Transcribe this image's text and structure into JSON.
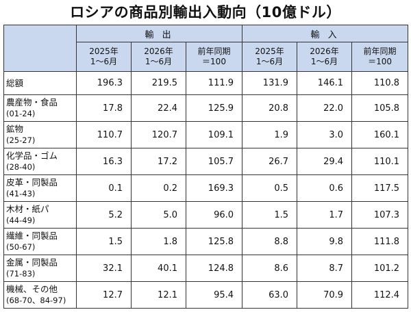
{
  "title": "ロシアの商品別輸出入動向（10億ドル）",
  "groups": {
    "export": "輸 出",
    "import": "輸 入"
  },
  "subheaders": [
    {
      "l1": "2025年",
      "l2": "1～6月"
    },
    {
      "l1": "2026年",
      "l2": "1～6月"
    },
    {
      "l1": "前年同期",
      "l2": "＝100"
    },
    {
      "l1": "2025年",
      "l2": "1～6月"
    },
    {
      "l1": "2026年",
      "l2": "1～6月"
    },
    {
      "l1": "前年同期",
      "l2": "＝100"
    }
  ],
  "rows": [
    {
      "name": "総額",
      "code": "",
      "values": [
        "196.3",
        "219.5",
        "111.9",
        "131.9",
        "146.1",
        "110.8"
      ]
    },
    {
      "name": "農産物・食品",
      "code": "(01-24)",
      "values": [
        "17.8",
        "22.4",
        "125.9",
        "20.8",
        "22.0",
        "105.8"
      ]
    },
    {
      "name": "鉱物",
      "code": "(25-27)",
      "values": [
        "110.7",
        "120.7",
        "109.1",
        "1.9",
        "3.0",
        "160.1"
      ]
    },
    {
      "name": "化学品・ゴム",
      "code": "(28-40)",
      "values": [
        "16.3",
        "17.2",
        "105.7",
        "26.7",
        "29.4",
        "110.1"
      ]
    },
    {
      "name": "皮革・同製品",
      "code": "(41-43)",
      "values": [
        "0.1",
        "0.2",
        "169.3",
        "0.5",
        "0.6",
        "117.5"
      ]
    },
    {
      "name": "木材・紙パ",
      "code": "(44-49)",
      "values": [
        "5.2",
        "5.0",
        "96.0",
        "1.5",
        "1.7",
        "107.3"
      ]
    },
    {
      "name": "繊維・同製品",
      "code": "(50-67)",
      "values": [
        "1.5",
        "1.8",
        "125.8",
        "8.8",
        "9.8",
        "111.8"
      ]
    },
    {
      "name": "金属・同製品",
      "code": "(71-83)",
      "values": [
        "32.1",
        "40.1",
        "124.8",
        "8.6",
        "8.7",
        "101.2"
      ]
    },
    {
      "name": "機械、その他",
      "code": "(68-70、84-97)",
      "values": [
        "12.7",
        "12.1",
        "95.4",
        "63.0",
        "70.9",
        "112.4"
      ]
    }
  ]
}
